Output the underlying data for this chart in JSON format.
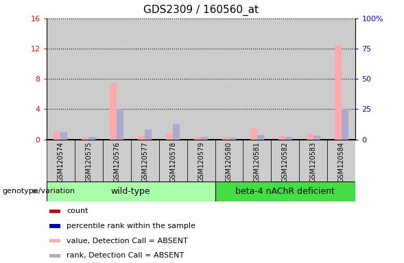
{
  "title": "GDS2309 / 160560_at",
  "samples": [
    "GSM120574",
    "GSM120575",
    "GSM120576",
    "GSM120577",
    "GSM120578",
    "GSM120579",
    "GSM120580",
    "GSM120581",
    "GSM120582",
    "GSM120583",
    "GSM120584"
  ],
  "count_values": [
    1.0,
    0.3,
    7.5,
    0.5,
    0.8,
    0.3,
    0.3,
    1.5,
    0.5,
    0.8,
    12.5
  ],
  "rank_values_pct": [
    6.0,
    2.0,
    25.0,
    8.0,
    12.5,
    2.0,
    1.5,
    3.5,
    2.0,
    3.0,
    25.0
  ],
  "count_color_absent": "#ffaaaa",
  "rank_color_absent": "#aaaacc",
  "ylim_left": [
    0,
    16
  ],
  "ylim_right": [
    0,
    100
  ],
  "yticks_left": [
    0,
    4,
    8,
    12,
    16
  ],
  "yticks_right": [
    0,
    25,
    50,
    75,
    100
  ],
  "ytick_labels_right": [
    "0",
    "25",
    "50",
    "75",
    "100%"
  ],
  "wt_color": "#aaffaa",
  "beta_color": "#44dd44",
  "bg_color": "#cccccc",
  "bar_width": 0.25,
  "legend_items": [
    {
      "color": "#cc0000",
      "label": "count"
    },
    {
      "color": "#0000cc",
      "label": "percentile rank within the sample"
    },
    {
      "color": "#ffaaaa",
      "label": "value, Detection Call = ABSENT"
    },
    {
      "color": "#aaaacc",
      "label": "rank, Detection Call = ABSENT"
    }
  ],
  "wt_indices": [
    0,
    5
  ],
  "beta_indices": [
    6,
    10
  ]
}
